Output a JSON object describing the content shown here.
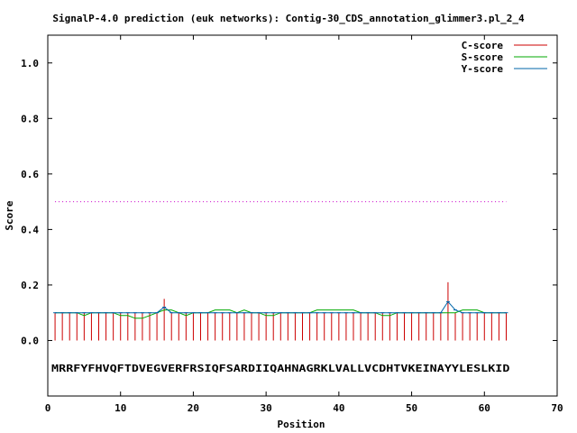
{
  "chart_data": {
    "type": "line",
    "title": "SignalP-4.0 prediction (euk networks): Contig-30_CDS_annotation_glimmer3.pl_2_4",
    "xlabel": "Position",
    "ylabel": "Score",
    "xlim": [
      0,
      70
    ],
    "ylim": [
      -0.2,
      1.1
    ],
    "x_ticks": [
      "0",
      "10",
      "20",
      "30",
      "40",
      "50",
      "60",
      "70"
    ],
    "y_ticks": [
      "0.0",
      "0.2",
      "0.4",
      "0.6",
      "0.8",
      "1.0"
    ],
    "grid": false,
    "legend_position": "top-right",
    "threshold": {
      "value": 0.5,
      "from": 1,
      "to": 63,
      "color": "#cc00cc"
    },
    "sequence": "MRRFYFHVQFTDVEGVERFRSIQFSARDIIQAHNAGRKLVALLVCDHTVKEINAYYLESLKID",
    "sequence_y": -0.1,
    "positions": [
      1,
      2,
      3,
      4,
      5,
      6,
      7,
      8,
      9,
      10,
      11,
      12,
      13,
      14,
      15,
      16,
      17,
      18,
      19,
      20,
      21,
      22,
      23,
      24,
      25,
      26,
      27,
      28,
      29,
      30,
      31,
      32,
      33,
      34,
      35,
      36,
      37,
      38,
      39,
      40,
      41,
      42,
      43,
      44,
      45,
      46,
      47,
      48,
      49,
      50,
      51,
      52,
      53,
      54,
      55,
      56,
      57,
      58,
      59,
      60,
      61,
      62,
      63
    ],
    "series": [
      {
        "name": "C-score",
        "color": "#cc0000",
        "style": "impulse",
        "values": [
          0.1,
          0.1,
          0.1,
          0.1,
          0.1,
          0.1,
          0.1,
          0.1,
          0.1,
          0.1,
          0.1,
          0.1,
          0.1,
          0.1,
          0.1,
          0.15,
          0.1,
          0.1,
          0.1,
          0.1,
          0.1,
          0.1,
          0.1,
          0.1,
          0.1,
          0.1,
          0.1,
          0.1,
          0.1,
          0.1,
          0.1,
          0.1,
          0.1,
          0.1,
          0.1,
          0.1,
          0.1,
          0.1,
          0.1,
          0.1,
          0.1,
          0.1,
          0.1,
          0.1,
          0.1,
          0.1,
          0.1,
          0.1,
          0.1,
          0.1,
          0.1,
          0.1,
          0.1,
          0.1,
          0.21,
          0.1,
          0.1,
          0.1,
          0.1,
          0.1,
          0.1,
          0.1,
          0.1
        ]
      },
      {
        "name": "S-score",
        "color": "#00aa00",
        "style": "line",
        "values": [
          0.1,
          0.1,
          0.1,
          0.1,
          0.09,
          0.1,
          0.1,
          0.1,
          0.1,
          0.09,
          0.09,
          0.08,
          0.08,
          0.09,
          0.1,
          0.11,
          0.11,
          0.1,
          0.09,
          0.1,
          0.1,
          0.1,
          0.11,
          0.11,
          0.11,
          0.1,
          0.11,
          0.1,
          0.1,
          0.09,
          0.09,
          0.1,
          0.1,
          0.1,
          0.1,
          0.1,
          0.11,
          0.11,
          0.11,
          0.11,
          0.11,
          0.11,
          0.1,
          0.1,
          0.1,
          0.09,
          0.09,
          0.1,
          0.1,
          0.1,
          0.1,
          0.1,
          0.1,
          0.1,
          0.1,
          0.1,
          0.11,
          0.11,
          0.11,
          0.1,
          0.1,
          0.1,
          0.1
        ]
      },
      {
        "name": "Y-score",
        "color": "#0066aa",
        "style": "line",
        "values": [
          0.1,
          0.1,
          0.1,
          0.1,
          0.1,
          0.1,
          0.1,
          0.1,
          0.1,
          0.1,
          0.1,
          0.1,
          0.1,
          0.1,
          0.1,
          0.12,
          0.1,
          0.1,
          0.1,
          0.1,
          0.1,
          0.1,
          0.1,
          0.1,
          0.1,
          0.1,
          0.1,
          0.1,
          0.1,
          0.1,
          0.1,
          0.1,
          0.1,
          0.1,
          0.1,
          0.1,
          0.1,
          0.1,
          0.1,
          0.1,
          0.1,
          0.1,
          0.1,
          0.1,
          0.1,
          0.1,
          0.1,
          0.1,
          0.1,
          0.1,
          0.1,
          0.1,
          0.1,
          0.1,
          0.14,
          0.11,
          0.1,
          0.1,
          0.1,
          0.1,
          0.1,
          0.1,
          0.1
        ]
      }
    ]
  }
}
